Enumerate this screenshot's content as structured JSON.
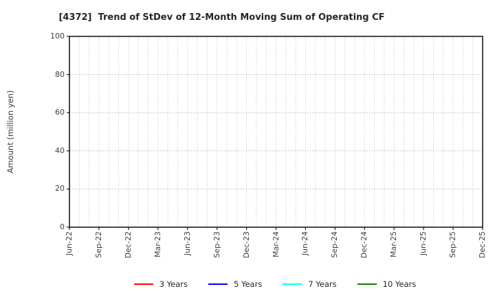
{
  "chart_data": {
    "type": "line",
    "title": "[4372]  Trend of StDev of 12-Month Moving Sum of Operating CF",
    "xlabel": "",
    "ylabel": "Amount (million yen)",
    "ylim": [
      0,
      100
    ],
    "yticks": [
      0,
      20,
      40,
      60,
      80,
      100
    ],
    "x_tick_labels": [
      "Jun-22",
      "Sep-22",
      "Dec-22",
      "Mar-23",
      "Jun-23",
      "Sep-23",
      "Dec-23",
      "Mar-24",
      "Jun-24",
      "Sep-24",
      "Dec-24",
      "Mar-25",
      "Jun-25",
      "Sep-25",
      "Dec-25"
    ],
    "x_total_months": 42,
    "x_months_per_label": 3,
    "grid": "on",
    "grid_style": "dotted",
    "legend_position": "bottom-center",
    "series": [
      {
        "name": "3 Years",
        "color": "#ff0000",
        "values": []
      },
      {
        "name": "5 Years",
        "color": "#0000ff",
        "values": []
      },
      {
        "name": "7 Years",
        "color": "#00ffff",
        "values": []
      },
      {
        "name": "10 Years",
        "color": "#008000",
        "values": []
      }
    ],
    "plot_content": "empty plot area — no data lines drawn"
  },
  "colors": {
    "background": "#ffffff",
    "frame": "#1a1a1a",
    "grid_horizontal": "#9e9e9e",
    "grid_vertical": "#bdbdbd",
    "title_text": "#262626",
    "tick_text": "#3d3d3d"
  }
}
